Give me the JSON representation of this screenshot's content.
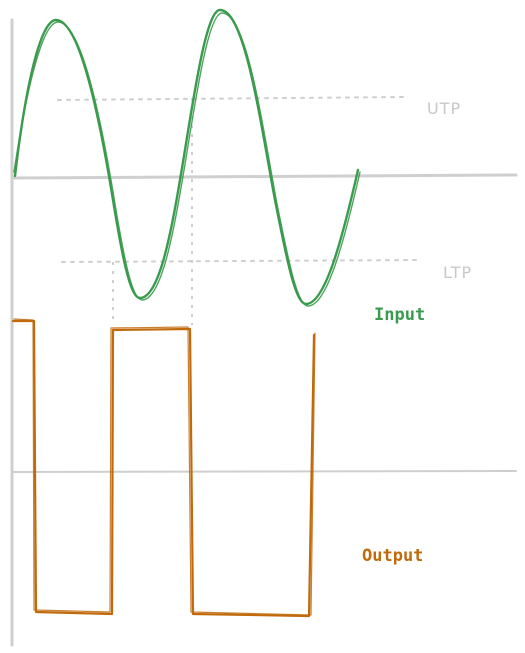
{
  "thresholds": {
    "upper_label": "UTP",
    "lower_label": "LTP"
  },
  "signals": {
    "input_label": "Input",
    "output_label": "Output"
  },
  "colors": {
    "input": "#3a9a4d",
    "output": "#c06a0c",
    "axis": "#cfcfcf",
    "threshold_line": "#cfcfcf",
    "threshold_text": "#c8c8c8"
  }
}
